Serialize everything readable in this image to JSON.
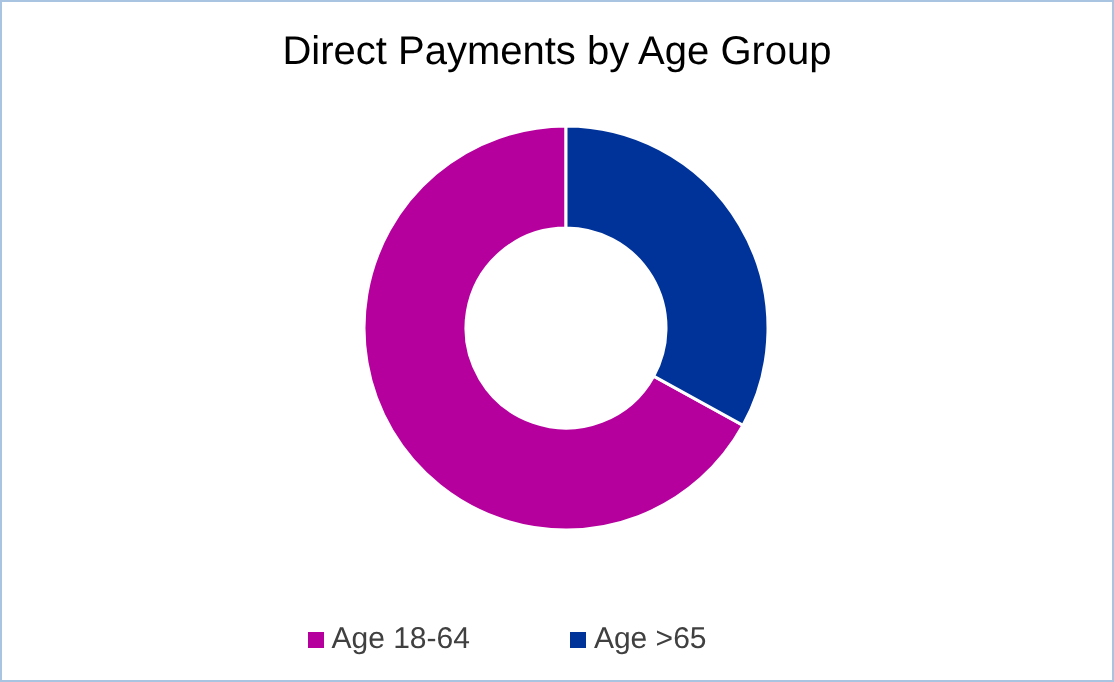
{
  "chart_data": {
    "type": "donut",
    "title": "Direct Payments by Age Group",
    "categories": [
      "Age 18-64",
      "Age >65"
    ],
    "values": [
      67,
      33
    ],
    "colors": [
      "#b5009e",
      "#003399"
    ],
    "legend": "bottom"
  }
}
